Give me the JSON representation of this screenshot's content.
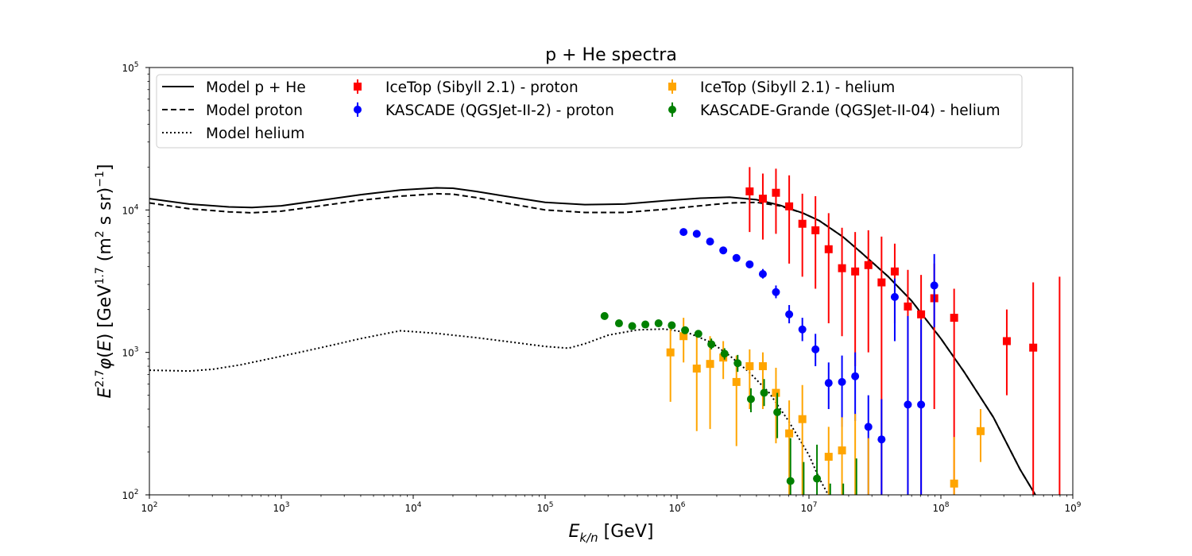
{
  "chart_data": {
    "type": "scatter",
    "title": "p + He spectra",
    "xlabel": "E_{k/n} [GeV]",
    "ylabel": "E^{2.7} φ(E) [GeV^{1.7} (m^2 s sr)^{-1}]",
    "xscale": "log",
    "yscale": "log",
    "xlim": [
      100,
      1000000000
    ],
    "ylim": [
      100,
      100000
    ],
    "x_ticks": [
      {
        "value": 100,
        "base": "10",
        "exp": "2"
      },
      {
        "value": 1000,
        "base": "10",
        "exp": "3"
      },
      {
        "value": 10000,
        "base": "10",
        "exp": "4"
      },
      {
        "value": 100000,
        "base": "10",
        "exp": "5"
      },
      {
        "value": 1000000,
        "base": "10",
        "exp": "6"
      },
      {
        "value": 10000000,
        "base": "10",
        "exp": "7"
      },
      {
        "value": 100000000,
        "base": "10",
        "exp": "8"
      },
      {
        "value": 1000000000,
        "base": "10",
        "exp": "9"
      }
    ],
    "y_ticks": [
      {
        "value": 100,
        "base": "10",
        "exp": "2"
      },
      {
        "value": 1000,
        "base": "10",
        "exp": "3"
      },
      {
        "value": 10000,
        "base": "10",
        "exp": "4"
      },
      {
        "value": 100000,
        "base": "10",
        "exp": "5"
      }
    ],
    "grid": false,
    "legend_position": "top",
    "lines": [
      {
        "name": "Model p + He",
        "style": "solid",
        "color": "#000000",
        "points": [
          [
            100,
            12000
          ],
          [
            200,
            11000
          ],
          [
            400,
            10500
          ],
          [
            600,
            10400
          ],
          [
            1000,
            10700
          ],
          [
            2000,
            11700
          ],
          [
            4000,
            12800
          ],
          [
            8000,
            13800
          ],
          [
            15000,
            14300
          ],
          [
            20000,
            14200
          ],
          [
            30000,
            13500
          ],
          [
            50000,
            12500
          ],
          [
            100000,
            11300
          ],
          [
            200000,
            10900
          ],
          [
            400000,
            11000
          ],
          [
            800000,
            11600
          ],
          [
            1500000,
            12100
          ],
          [
            2500000,
            12300
          ],
          [
            4000000,
            11800
          ],
          [
            6000000,
            10800
          ],
          [
            9000000,
            9500
          ],
          [
            12000000,
            8400
          ],
          [
            18000000,
            6500
          ],
          [
            25000000,
            5000
          ],
          [
            40000000,
            3400
          ],
          [
            60000000,
            2300
          ],
          [
            100000000,
            1250
          ],
          [
            150000000,
            730
          ],
          [
            250000000,
            350
          ],
          [
            400000000,
            150
          ],
          [
            520000000,
            100
          ]
        ]
      },
      {
        "name": "Model proton",
        "style": "dashed",
        "color": "#000000",
        "points": [
          [
            100,
            11200
          ],
          [
            200,
            10200
          ],
          [
            400,
            9700
          ],
          [
            600,
            9550
          ],
          [
            1000,
            9800
          ],
          [
            2000,
            10700
          ],
          [
            4000,
            11700
          ],
          [
            8000,
            12500
          ],
          [
            15000,
            13000
          ],
          [
            20000,
            12900
          ],
          [
            30000,
            12200
          ],
          [
            50000,
            11200
          ],
          [
            100000,
            10000
          ],
          [
            200000,
            9600
          ],
          [
            400000,
            9600
          ],
          [
            800000,
            10100
          ],
          [
            1500000,
            10700
          ],
          [
            2500000,
            11200
          ],
          [
            4000000,
            11300
          ],
          [
            6000000,
            10700
          ],
          [
            9000000,
            9500
          ],
          [
            12000000,
            8400
          ],
          [
            18000000,
            6500
          ],
          [
            25000000,
            5000
          ],
          [
            40000000,
            3400
          ],
          [
            60000000,
            2300
          ],
          [
            100000000,
            1250
          ],
          [
            150000000,
            730
          ],
          [
            250000000,
            350
          ],
          [
            400000000,
            150
          ],
          [
            520000000,
            100
          ]
        ]
      },
      {
        "name": "Model helium",
        "style": "dotted",
        "color": "#000000",
        "points": [
          [
            100,
            750
          ],
          [
            200,
            740
          ],
          [
            300,
            760
          ],
          [
            500,
            820
          ],
          [
            1000,
            940
          ],
          [
            2000,
            1080
          ],
          [
            4000,
            1250
          ],
          [
            8000,
            1420
          ],
          [
            15000,
            1360
          ],
          [
            30000,
            1270
          ],
          [
            60000,
            1170
          ],
          [
            100000,
            1100
          ],
          [
            150000,
            1070
          ],
          [
            200000,
            1150
          ],
          [
            300000,
            1320
          ],
          [
            500000,
            1440
          ],
          [
            800000,
            1460
          ],
          [
            1200000,
            1380
          ],
          [
            1800000,
            1180
          ],
          [
            2500000,
            950
          ],
          [
            3500000,
            730
          ],
          [
            5000000,
            520
          ],
          [
            7000000,
            330
          ],
          [
            10000000,
            190
          ],
          [
            12000000,
            130
          ],
          [
            14000000,
            100
          ]
        ]
      }
    ],
    "series": [
      {
        "name": "IceTop (Sibyll 2.1) - proton",
        "marker": "square",
        "color": "#ff0000",
        "points": [
          {
            "x": 3550000,
            "y": 13500,
            "lo": 7000,
            "hi": 20000
          },
          {
            "x": 4470000,
            "y": 12000,
            "lo": 6200,
            "hi": 18000
          },
          {
            "x": 5620000,
            "y": 13200,
            "lo": 6800,
            "hi": 19500
          },
          {
            "x": 7080000,
            "y": 10600,
            "lo": 4200,
            "hi": 17500
          },
          {
            "x": 8910000,
            "y": 8000,
            "lo": 3400,
            "hi": 13000
          },
          {
            "x": 11200000,
            "y": 7200,
            "lo": 2800,
            "hi": 12500
          },
          {
            "x": 14100000,
            "y": 5300,
            "lo": 1600,
            "hi": 9500
          },
          {
            "x": 17800000,
            "y": 3900,
            "lo": 1300,
            "hi": 7500
          },
          {
            "x": 22400000,
            "y": 3700,
            "lo": 800,
            "hi": 7000
          },
          {
            "x": 28200000,
            "y": 4100,
            "lo": 1000,
            "hi": 7200
          },
          {
            "x": 35500000,
            "y": 3100,
            "lo": 100,
            "hi": 6500
          },
          {
            "x": 44700000,
            "y": 3700,
            "lo": 1600,
            "hi": 5800
          },
          {
            "x": 56200000,
            "y": 2100,
            "lo": 100,
            "hi": 3800
          },
          {
            "x": 70800000,
            "y": 1850,
            "lo": 100,
            "hi": 3500
          },
          {
            "x": 89100000,
            "y": 2400,
            "lo": 400,
            "hi": 4200
          },
          {
            "x": 126000000,
            "y": 1750,
            "lo": 100,
            "hi": 2800
          },
          {
            "x": 316000000,
            "y": 1200,
            "lo": 500,
            "hi": 2000
          },
          {
            "x": 501000000,
            "y": 1080,
            "lo": 100,
            "hi": 3100
          },
          {
            "x": 794000000,
            "y": null,
            "lo": 100,
            "hi": 3400
          }
        ]
      },
      {
        "name": "KASCADE (QGSJet-II-2) - proton",
        "marker": "circle",
        "color": "#0000ff",
        "points": [
          {
            "x": 1120000,
            "y": 7000,
            "lo": null,
            "hi": null
          },
          {
            "x": 1410000,
            "y": 6800,
            "lo": null,
            "hi": null
          },
          {
            "x": 1780000,
            "y": 6000,
            "lo": null,
            "hi": null
          },
          {
            "x": 2240000,
            "y": 5200,
            "lo": null,
            "hi": null
          },
          {
            "x": 2820000,
            "y": 4600,
            "lo": null,
            "hi": null
          },
          {
            "x": 3550000,
            "y": 4150,
            "lo": null,
            "hi": null
          },
          {
            "x": 4470000,
            "y": 3550,
            "lo": 3300,
            "hi": 3850
          },
          {
            "x": 5620000,
            "y": 2650,
            "lo": 2400,
            "hi": 2950
          },
          {
            "x": 7080000,
            "y": 1850,
            "lo": 1600,
            "hi": 2150
          },
          {
            "x": 8910000,
            "y": 1450,
            "lo": 1200,
            "hi": 1750
          },
          {
            "x": 11200000,
            "y": 1050,
            "lo": 800,
            "hi": 1350
          },
          {
            "x": 14100000,
            "y": 610,
            "lo": 400,
            "hi": 850
          },
          {
            "x": 17800000,
            "y": 620,
            "lo": 300,
            "hi": 950
          },
          {
            "x": 22400000,
            "y": 680,
            "lo": 330,
            "hi": 1000
          },
          {
            "x": 28200000,
            "y": 300,
            "lo": 100,
            "hi": 500
          },
          {
            "x": 35500000,
            "y": 245,
            "lo": 100,
            "hi": 470
          },
          {
            "x": 44700000,
            "y": 2450,
            "lo": 1200,
            "hi": 3300
          },
          {
            "x": 56200000,
            "y": 430,
            "lo": 100,
            "hi": 1800
          },
          {
            "x": 70800000,
            "y": 430,
            "lo": 100,
            "hi": 1700
          },
          {
            "x": 89100000,
            "y": 2950,
            "lo": 1500,
            "hi": 4900
          }
        ]
      },
      {
        "name": "IceTop (Sibyll 2.1) - helium",
        "marker": "square",
        "color": "#ffa500",
        "points": [
          {
            "x": 891000,
            "y": 1000,
            "lo": 450,
            "hi": 1500
          },
          {
            "x": 1120000,
            "y": 1300,
            "lo": 850,
            "hi": 1750
          },
          {
            "x": 1410000,
            "y": 770,
            "lo": 280,
            "hi": 1350
          },
          {
            "x": 1780000,
            "y": 830,
            "lo": 290,
            "hi": 1300
          },
          {
            "x": 2240000,
            "y": 920,
            "lo": 650,
            "hi": 1200
          },
          {
            "x": 2820000,
            "y": 620,
            "lo": 220,
            "hi": 950
          },
          {
            "x": 3550000,
            "y": 800,
            "lo": 400,
            "hi": 1050
          },
          {
            "x": 4470000,
            "y": 800,
            "lo": 400,
            "hi": 1000
          },
          {
            "x": 5620000,
            "y": 520,
            "lo": 230,
            "hi": 780
          },
          {
            "x": 7080000,
            "y": 270,
            "lo": 100,
            "hi": 460
          },
          {
            "x": 8910000,
            "y": 340,
            "lo": 100,
            "hi": 590
          },
          {
            "x": 14100000,
            "y": 185,
            "lo": 100,
            "hi": 300
          },
          {
            "x": 17800000,
            "y": 205,
            "lo": 100,
            "hi": 350
          },
          {
            "x": 22400000,
            "y": null,
            "lo": 100,
            "hi": 370
          },
          {
            "x": 28200000,
            "y": null,
            "lo": 100,
            "hi": 250
          },
          {
            "x": 126000000,
            "y": 120,
            "lo": 100,
            "hi": 255
          },
          {
            "x": 200000000,
            "y": 280,
            "lo": 170,
            "hi": 400
          }
        ]
      },
      {
        "name": "KASCADE-Grande (QGSJet-II-04) - helium",
        "marker": "circle",
        "color": "#008000",
        "points": [
          {
            "x": 282000,
            "y": 1800,
            "lo": null,
            "hi": null
          },
          {
            "x": 363000,
            "y": 1600,
            "lo": null,
            "hi": null
          },
          {
            "x": 457000,
            "y": 1530,
            "lo": null,
            "hi": null
          },
          {
            "x": 575000,
            "y": 1570,
            "lo": null,
            "hi": null
          },
          {
            "x": 724000,
            "y": 1600,
            "lo": null,
            "hi": null
          },
          {
            "x": 912000,
            "y": 1550,
            "lo": null,
            "hi": null
          },
          {
            "x": 1150000,
            "y": 1430,
            "lo": null,
            "hi": null
          },
          {
            "x": 1450000,
            "y": 1350,
            "lo": null,
            "hi": null
          },
          {
            "x": 1820000,
            "y": 1140,
            "lo": 1050,
            "hi": 1250
          },
          {
            "x": 2290000,
            "y": 980,
            "lo": 890,
            "hi": 1070
          },
          {
            "x": 2880000,
            "y": 840,
            "lo": 730,
            "hi": 960
          },
          {
            "x": 3630000,
            "y": 470,
            "lo": 380,
            "hi": 560
          },
          {
            "x": 4570000,
            "y": 520,
            "lo": 420,
            "hi": 650
          },
          {
            "x": 5750000,
            "y": 380,
            "lo": 250,
            "hi": 520
          },
          {
            "x": 7240000,
            "y": 125,
            "lo": 100,
            "hi": 250
          },
          {
            "x": 9120000,
            "y": null,
            "lo": 100,
            "hi": 170
          },
          {
            "x": 11500000,
            "y": 130,
            "lo": 100,
            "hi": 225
          },
          {
            "x": 14500000,
            "y": null,
            "lo": 100,
            "hi": 120
          },
          {
            "x": 18200000,
            "y": null,
            "lo": 100,
            "hi": 120
          },
          {
            "x": 22900000,
            "y": null,
            "lo": 100,
            "hi": 180
          }
        ]
      }
    ]
  }
}
